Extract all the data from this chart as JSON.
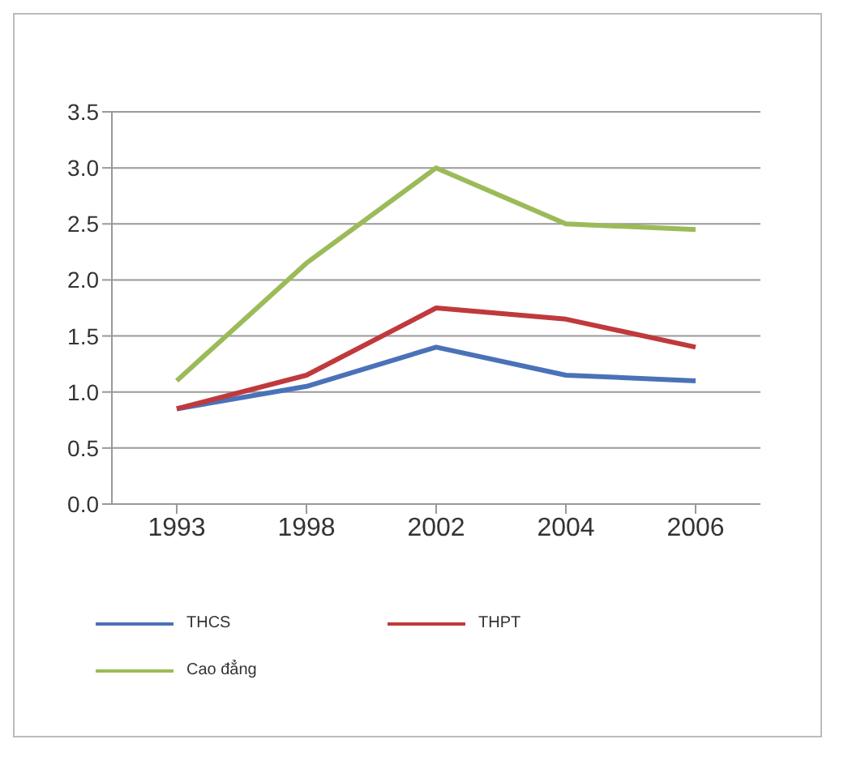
{
  "chart_data": {
    "type": "line",
    "categories": [
      "1993",
      "1998",
      "2002",
      "2004",
      "2006"
    ],
    "series": [
      {
        "name": "THCS",
        "color": "#4a72b8",
        "values": [
          0.85,
          1.05,
          1.4,
          1.15,
          1.1
        ]
      },
      {
        "name": "THPT",
        "color": "#c0393c",
        "values": [
          0.85,
          1.15,
          1.75,
          1.65,
          1.4
        ]
      },
      {
        "name": "Cao đẳng",
        "color": "#9bbb59",
        "values": [
          1.1,
          2.15,
          3.0,
          2.5,
          2.45
        ]
      }
    ],
    "ylim": [
      0,
      3.5
    ],
    "yticks": [
      {
        "value": 0,
        "label": "0.0"
      },
      0.5,
      {
        "value": 1,
        "label": "1.0"
      },
      1.5,
      {
        "value": 2,
        "label": "2.0"
      },
      2.5,
      {
        "value": 3,
        "label": "3.0"
      },
      3.5
    ],
    "grid": "y",
    "legend": "bottom",
    "marker": "none",
    "line_style": "solid"
  }
}
